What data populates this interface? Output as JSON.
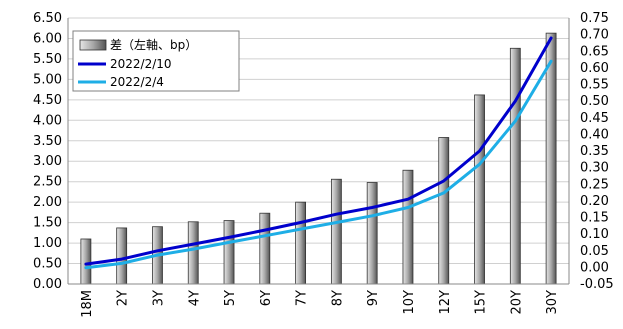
{
  "chart_data": {
    "type": "bar",
    "categories": [
      "18M",
      "2Y",
      "3Y",
      "4Y",
      "5Y",
      "6Y",
      "7Y",
      "8Y",
      "9Y",
      "10Y",
      "12Y",
      "15Y",
      "20Y",
      "30Y"
    ],
    "series": [
      {
        "name": "差（左軸、bp）",
        "type": "bar",
        "axis": "left",
        "values": [
          1.1,
          1.37,
          1.4,
          1.52,
          1.55,
          1.73,
          2.0,
          2.56,
          2.48,
          2.78,
          3.58,
          4.62,
          5.76,
          6.13
        ]
      },
      {
        "name": "2022/2/10",
        "type": "line",
        "axis": "right",
        "color": "#0000cc",
        "values": [
          0.01,
          0.025,
          0.05,
          0.07,
          0.09,
          0.112,
          0.135,
          0.16,
          0.18,
          0.205,
          0.26,
          0.35,
          0.5,
          0.69
        ]
      },
      {
        "name": "2022/2/4",
        "type": "line",
        "axis": "right",
        "color": "#1eaee6",
        "values": [
          -0.001,
          0.012,
          0.037,
          0.055,
          0.075,
          0.095,
          0.115,
          0.135,
          0.155,
          0.18,
          0.224,
          0.31,
          0.44,
          0.62
        ]
      }
    ],
    "y_left": {
      "lim": [
        0,
        6.5
      ],
      "ticks": [
        "0.00",
        "0.50",
        "1.00",
        "1.50",
        "2.00",
        "2.50",
        "3.00",
        "3.50",
        "4.00",
        "4.50",
        "5.00",
        "5.50",
        "6.00",
        "6.50"
      ]
    },
    "y_right": {
      "lim": [
        -0.05,
        0.75
      ],
      "ticks": [
        "-0.05",
        "0.00",
        "0.05",
        "0.10",
        "0.15",
        "0.20",
        "0.25",
        "0.30",
        "0.35",
        "0.40",
        "0.45",
        "0.50",
        "0.55",
        "0.60",
        "0.65",
        "0.70",
        "0.75"
      ]
    },
    "grid": "horizontal",
    "legend_position": "top-left"
  }
}
